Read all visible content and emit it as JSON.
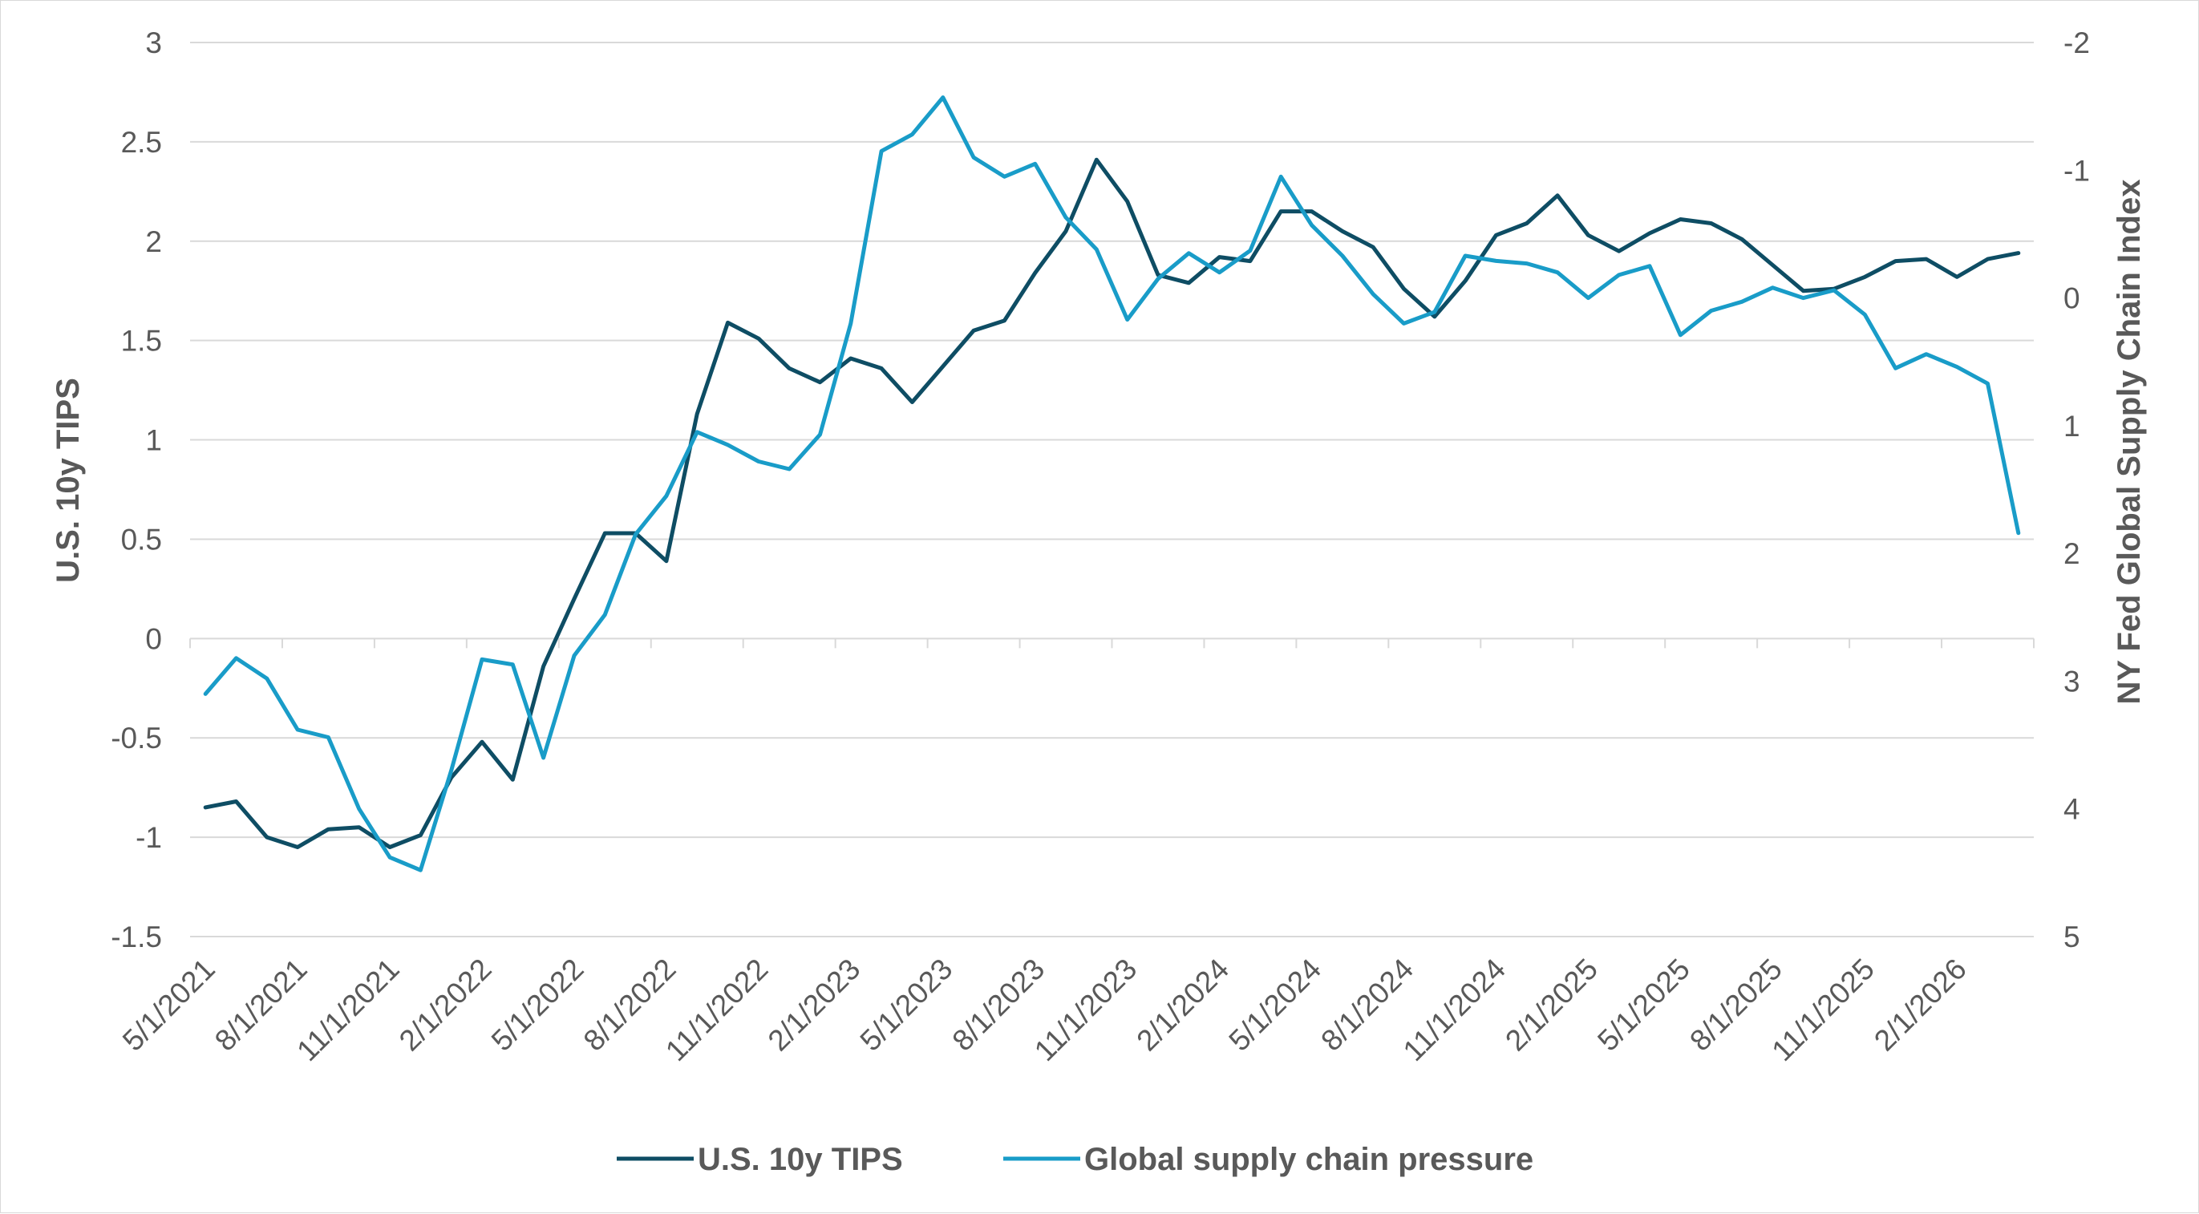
{
  "chart_data": {
    "type": "line",
    "title": "",
    "x_label": "",
    "y_label": "U.S. 10y TIPS",
    "y2_label": "NY Fed Global Supply Chain Index",
    "y_ticks": [
      "3",
      "2.5",
      "2",
      "1.5",
      "1",
      "0.5",
      "0",
      "-0.5",
      "-1",
      "-1.5"
    ],
    "y2_ticks": [
      "-2",
      "-1",
      "0",
      "1",
      "2",
      "3",
      "4",
      "5"
    ],
    "x_tick_labels": [
      "5/1/2021",
      "8/1/2021",
      "11/1/2021",
      "2/1/2022",
      "5/1/2022",
      "8/1/2022",
      "11/1/2022",
      "2/1/2023",
      "5/1/2023",
      "8/1/2023",
      "11/1/2023",
      "2/1/2024",
      "5/1/2024",
      "8/1/2024",
      "11/1/2024",
      "2/1/2025",
      "5/1/2025",
      "8/1/2025",
      "11/1/2025",
      "2/1/2026"
    ],
    "y_range": [
      -1.5,
      3
    ],
    "y2_range": [
      5,
      -2
    ],
    "y2_inverted": true,
    "grid": "horizontal",
    "legend_position": "bottom",
    "x": [
      "5/1/2021",
      "6/1/2021",
      "7/1/2021",
      "8/1/2021",
      "9/1/2021",
      "10/1/2021",
      "11/1/2021",
      "12/1/2021",
      "1/1/2022",
      "2/1/2022",
      "3/1/2022",
      "4/1/2022",
      "5/1/2022",
      "6/1/2022",
      "7/1/2022",
      "8/1/2022",
      "9/1/2022",
      "10/1/2022",
      "11/1/2022",
      "12/1/2022",
      "1/1/2023",
      "2/1/2023",
      "3/1/2023",
      "4/1/2023",
      "5/1/2023",
      "6/1/2023",
      "7/1/2023",
      "8/1/2023",
      "9/1/2023",
      "10/1/2023",
      "11/1/2023",
      "12/1/2023",
      "1/1/2024",
      "2/1/2024",
      "3/1/2024",
      "4/1/2024",
      "5/1/2024",
      "6/1/2024",
      "7/1/2024",
      "8/1/2024",
      "9/1/2024",
      "10/1/2024",
      "11/1/2024",
      "12/1/2024",
      "1/1/2025",
      "2/1/2025",
      "3/1/2025",
      "4/1/2025",
      "5/1/2025",
      "6/1/2025",
      "7/1/2025",
      "8/1/2025",
      "9/1/2025",
      "10/1/2025",
      "11/1/2025",
      "12/1/2025",
      "1/1/2026",
      "2/1/2026",
      "3/1/2026",
      "4/1/2026"
    ],
    "series": [
      {
        "name": "U.S. 10y TIPS",
        "color": "#0e4d64",
        "axis": "left",
        "values": [
          -0.85,
          -0.82,
          -1.0,
          -1.05,
          -0.96,
          -0.95,
          -1.05,
          -0.99,
          -0.7,
          -0.52,
          -0.71,
          -0.14,
          0.2,
          0.53,
          0.53,
          0.39,
          1.13,
          1.59,
          1.51,
          1.36,
          1.29,
          1.41,
          1.36,
          1.19,
          1.37,
          1.55,
          1.6,
          1.84,
          2.05,
          2.41,
          2.2,
          1.83,
          1.79,
          1.92,
          1.9,
          2.15,
          2.15,
          2.05,
          1.97,
          1.76,
          1.62,
          1.8,
          2.03,
          2.09,
          2.23,
          2.03,
          1.95,
          2.04,
          2.11,
          2.09,
          2.01,
          1.88,
          1.75,
          1.76,
          1.82,
          1.9,
          1.91,
          1.82,
          1.91,
          1.94
        ]
      },
      {
        "name": "Global supply chain pressure",
        "color": "#199cc8",
        "axis": "right",
        "values": [
          3.1,
          2.82,
          2.98,
          3.38,
          3.44,
          4.0,
          4.38,
          4.48,
          3.7,
          2.83,
          2.87,
          3.6,
          2.8,
          2.48,
          1.85,
          1.55,
          1.05,
          1.15,
          1.28,
          1.34,
          1.07,
          0.2,
          -1.15,
          -1.28,
          -1.57,
          -1.1,
          -0.95,
          -1.05,
          -0.63,
          -0.38,
          0.17,
          -0.15,
          -0.35,
          -0.2,
          -0.37,
          -0.95,
          -0.57,
          -0.33,
          -0.03,
          0.2,
          0.11,
          -0.33,
          -0.29,
          -0.27,
          -0.2,
          0.0,
          -0.18,
          -0.25,
          0.29,
          0.1,
          0.03,
          -0.08,
          0.0,
          -0.06,
          0.13,
          0.55,
          0.44,
          0.54,
          0.67,
          1.84
        ]
      }
    ]
  }
}
